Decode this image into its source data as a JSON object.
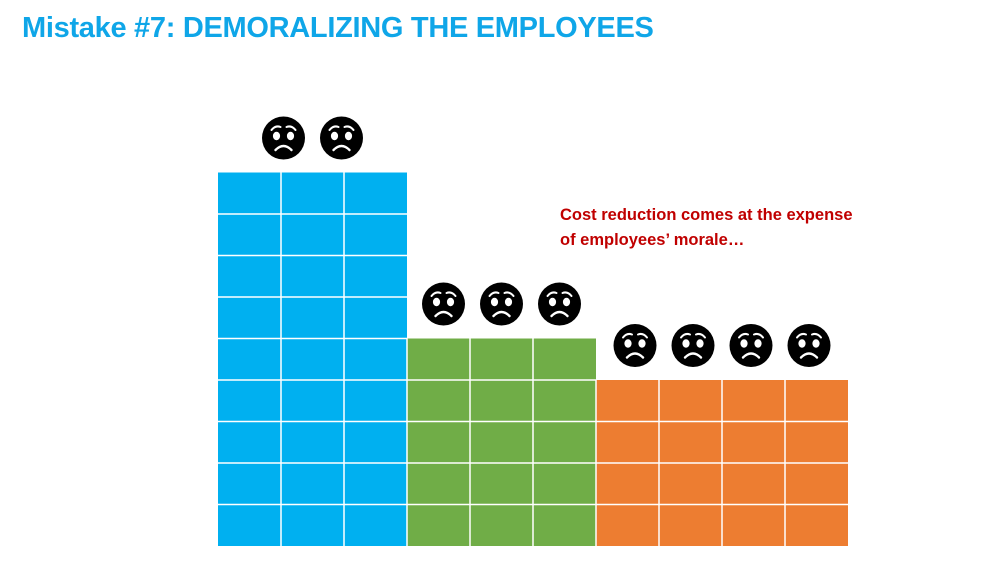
{
  "slide": {
    "title": "Mistake #7: DEMORALIZING THE EMPLOYEES",
    "title_color": "#0FA6E8"
  },
  "caption": {
    "line1": "Cost reduction comes at the expense",
    "line2": "of employees’ morale…",
    "color": "#C00000"
  },
  "blocks": [
    {
      "name": "blue-block",
      "color": "#00B0F0",
      "columns": 3,
      "rows": 9,
      "sad_faces": 2
    },
    {
      "name": "green-block",
      "color": "#70AD47",
      "columns": 3,
      "rows": 5,
      "sad_faces": 3
    },
    {
      "name": "orange-block",
      "color": "#ED7D31",
      "columns": 4,
      "rows": 4,
      "sad_faces": 4
    }
  ],
  "icons": {
    "face": "sad-face-icon"
  }
}
